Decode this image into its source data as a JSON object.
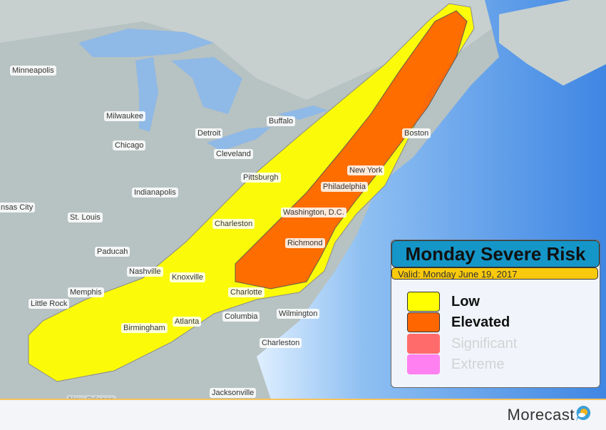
{
  "legend": {
    "title": "Monday Severe Risk",
    "valid": "Valid: Monday June 19, 2017",
    "items": [
      {
        "label": "Low",
        "color": "#ffff00",
        "active": true
      },
      {
        "label": "Elevated",
        "color": "#ff6600",
        "active": true
      },
      {
        "label": "Significant",
        "color": "#ff6b6b",
        "active": false
      },
      {
        "label": "Extreme",
        "color": "#ff80f0",
        "active": false
      }
    ]
  },
  "cities": [
    "Minneapolis",
    "Milwaukee",
    "Chicago",
    "Detroit",
    "Buffalo",
    "Cleveland",
    "Pittsburgh",
    "Indianapolis",
    "nsas City",
    "St. Louis",
    "Charleston",
    "Washington, D.C.",
    "Philadelphia",
    "New York",
    "Boston",
    "Paducah",
    "Nashville",
    "Knoxville",
    "Richmond",
    "Memphis",
    "Little Rock",
    "Charlotte",
    "Wilmington",
    "Columbia",
    "Atlanta",
    "Birmingham",
    "Charleston",
    "Jacksonville",
    "New Orleans"
  ],
  "brand": {
    "name": "Morecast",
    "icon": "sun-cloud-bubble-icon"
  },
  "colors": {
    "land": "#b7c2c2",
    "ocean": "#5a9ee8",
    "low": "#ffff00",
    "elevated": "#ff6600"
  }
}
